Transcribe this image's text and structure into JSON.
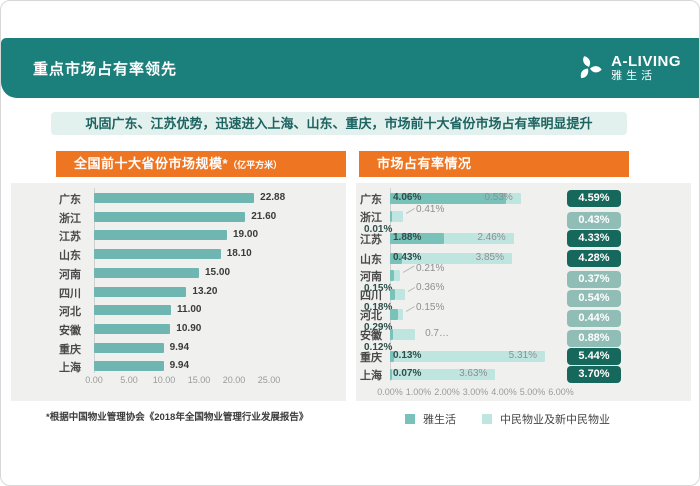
{
  "header": {
    "title": "重点市场占有率领先",
    "logo": {
      "name": "A-LIVING",
      "cn": "雅生活"
    }
  },
  "banner": {
    "text": "巩固广东、江苏优势，迅速进入上海、山东、重庆，市场前十大省份市场占有率明显提升"
  },
  "footnote": "*根据中国物业管理协会《2018年全国物业管理行业发展报告》",
  "colors": {
    "teal": "#1b7f7c",
    "orange": "#ee7623",
    "banner_bg": "#e2f0ee",
    "banner_text": "#1d6360",
    "panel_bg": "#f0f0ef",
    "bar_teal": "#6fb5b1",
    "series1": "#79c2ba",
    "series2": "#bfe5e1",
    "badge_dark": "#17685c",
    "badge_light": "#90beb7"
  },
  "chart_data": [
    {
      "type": "bar",
      "orientation": "horizontal",
      "title": "全国前十大省份市场规模*",
      "title_unit": "（亿平方米）",
      "categories": [
        "广东",
        "浙江",
        "江苏",
        "山东",
        "河南",
        "四川",
        "河北",
        "安徽",
        "重庆",
        "上海"
      ],
      "values": [
        22.88,
        21.6,
        19.0,
        18.1,
        15.0,
        13.2,
        11.0,
        10.9,
        9.94,
        9.94
      ],
      "value_labels": [
        "22.88",
        "21.60",
        "19.00",
        "18.10",
        "15.00",
        "13.20",
        "11.00",
        "10.90",
        "9.94",
        "9.94"
      ],
      "x_ticks": [
        "0.00",
        "5.00",
        "10.00",
        "15.00",
        "20.00",
        "25.00"
      ],
      "xlim": [
        0,
        25
      ],
      "grid": false,
      "legend_position": "none"
    },
    {
      "type": "bar",
      "subtype": "stacked-horizontal",
      "title": "市场占有率情况",
      "categories": [
        "广东",
        "浙江",
        "江苏",
        "山东",
        "河南",
        "四川",
        "河北",
        "安徽",
        "重庆",
        "上海"
      ],
      "series": [
        {
          "name": "雅生活",
          "values": [
            4.06,
            0.01,
            1.88,
            0.43,
            0.15,
            0.18,
            0.29,
            0.12,
            0.13,
            0.07
          ],
          "labels": [
            "4.06%",
            "0.01%",
            "1.88%",
            "0.43%",
            "0.15%",
            "0.18%",
            "0.29%",
            "0.12%",
            "0.13%",
            "0.07%"
          ],
          "label_position": [
            "inside",
            "below",
            "inside",
            "inside",
            "below",
            "below",
            "below",
            "below",
            "inside",
            "inside"
          ]
        },
        {
          "name": "中民物业及新中民物业",
          "values": [
            0.53,
            0.41,
            2.46,
            3.85,
            0.21,
            0.36,
            0.15,
            0.76,
            5.31,
            3.63
          ],
          "labels": [
            "0.53%",
            "0.41%",
            "2.46%",
            "3.85%",
            "0.21%",
            "0.36%",
            "0.15%",
            "0.7…",
            "5.31%",
            "3.63%"
          ],
          "label_position": [
            "inside-end",
            "callout",
            "inside-end",
            "inside-end",
            "callout",
            "callout",
            "callout",
            "right",
            "inside-end",
            "inside-end"
          ]
        }
      ],
      "totals": {
        "labels": [
          "4.59%",
          "0.43%",
          "4.33%",
          "4.28%",
          "0.37%",
          "0.54%",
          "0.44%",
          "0.88%",
          "5.44%",
          "3.70%"
        ],
        "style": [
          "dark",
          "light",
          "dark",
          "dark",
          "light",
          "light",
          "light",
          "light",
          "dark",
          "dark"
        ]
      },
      "x_ticks": [
        "0.00%",
        "1.00%",
        "2.00%",
        "3.00%",
        "4.00%",
        "5.00%",
        "6.00%"
      ],
      "xlim": [
        0,
        6
      ],
      "legend_position": "bottom"
    }
  ]
}
